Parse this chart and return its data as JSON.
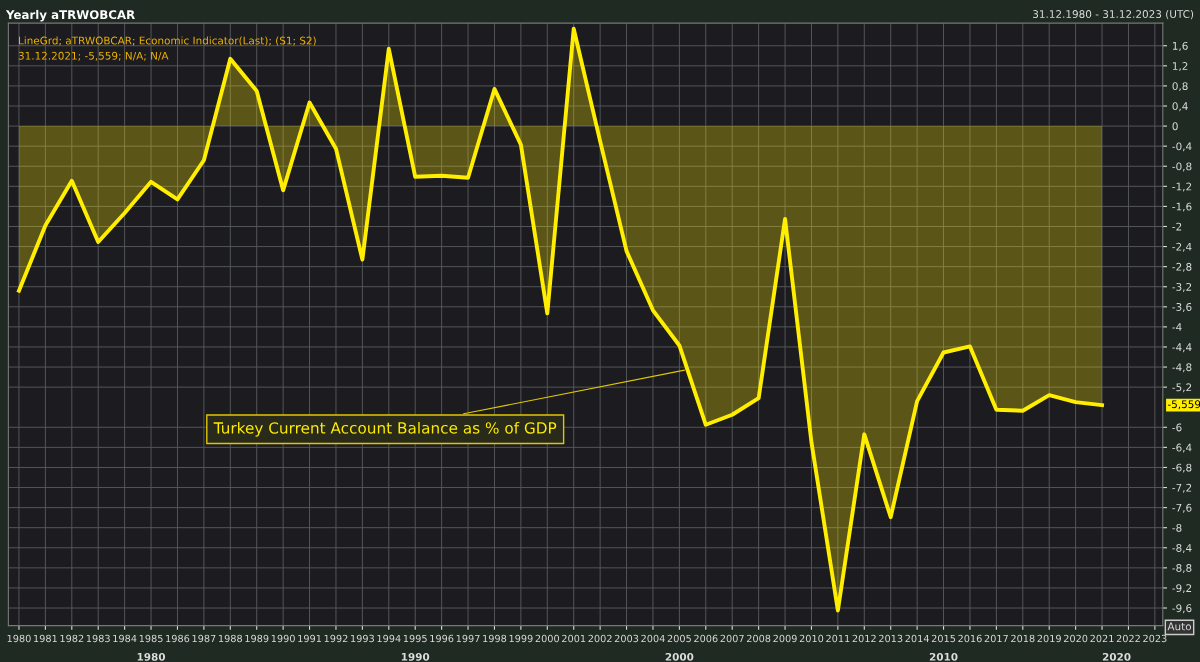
{
  "chart_data": {
    "type": "area",
    "title": "Yearly aTRWOBCAR",
    "x": [
      1980,
      1981,
      1982,
      1983,
      1984,
      1985,
      1986,
      1987,
      1988,
      1989,
      1990,
      1991,
      1992,
      1993,
      1994,
      1995,
      1996,
      1997,
      1998,
      1999,
      2000,
      2001,
      2002,
      2003,
      2004,
      2005,
      2006,
      2007,
      2008,
      2009,
      2010,
      2011,
      2012,
      2013,
      2014,
      2015,
      2016,
      2017,
      2018,
      2019,
      2020,
      2021
    ],
    "series": [
      {
        "color": "#ffee00",
        "values": [
          -3.28,
          -1.98,
          -1.09,
          -2.31,
          -1.73,
          -1.11,
          -1.46,
          -0.68,
          1.34,
          0.7,
          -1.28,
          0.47,
          -0.45,
          -2.66,
          1.54,
          -1.01,
          -0.99,
          -1.03,
          0.74,
          -0.37,
          -3.73,
          1.94,
          -0.3,
          -2.49,
          -3.67,
          -4.37,
          -5.95,
          -5.75,
          -5.42,
          -1.85,
          -6.3,
          -9.65,
          -6.14,
          -7.79,
          -5.48,
          -4.51,
          -4.39,
          -5.65,
          -5.67,
          -5.36,
          -5.5,
          -5.559
        ]
      }
    ],
    "xlim": [
      1979.6,
      2023.3
    ],
    "xticks": [
      1980,
      1981,
      1982,
      1983,
      1984,
      1985,
      1986,
      1987,
      1988,
      1989,
      1990,
      1991,
      1992,
      1993,
      1994,
      1995,
      1996,
      1997,
      1998,
      1999,
      2000,
      2001,
      2002,
      2003,
      2004,
      2005,
      2006,
      2007,
      2008,
      2009,
      2010,
      2011,
      2012,
      2013,
      2014,
      2015,
      2016,
      2017,
      2018,
      2019,
      2020,
      2021,
      2022,
      2023
    ],
    "ylim": [
      -9.95,
      2.05
    ],
    "yticks": [
      {
        "value": 1.6,
        "label": "1,6"
      },
      {
        "value": 1.2,
        "label": "1,2"
      },
      {
        "value": 0.8,
        "label": "0,8"
      },
      {
        "value": 0.4,
        "label": "0,4"
      },
      0,
      {
        "value": -0.4,
        "label": "-0,4"
      },
      {
        "value": -0.8,
        "label": "-0,8"
      },
      {
        "value": -1.2,
        "label": "-1,2"
      },
      {
        "value": -1.6,
        "label": "-1,6"
      },
      {
        "value": -2,
        "label": "-2"
      },
      {
        "value": -2.4,
        "label": "-2,4"
      },
      {
        "value": -2.8,
        "label": "-2,8"
      },
      {
        "value": -3.2,
        "label": "-3,2"
      },
      {
        "value": -3.6,
        "label": "-3,6"
      },
      {
        "value": -4,
        "label": "-4"
      },
      {
        "value": -4.4,
        "label": "-4,4"
      },
      {
        "value": -4.8,
        "label": "-4,8"
      },
      {
        "value": -5.2,
        "label": "-5,2"
      },
      {
        "value": -6,
        "label": "-6"
      },
      {
        "value": -6.4,
        "label": "-6,4"
      },
      {
        "value": -6.8,
        "label": "-6,8"
      },
      {
        "value": -7.2,
        "label": "-7,2"
      },
      {
        "value": -7.6,
        "label": "-7,6"
      },
      {
        "value": -8,
        "label": "-8"
      },
      {
        "value": -8.4,
        "label": "-8,4"
      },
      {
        "value": -8.8,
        "label": "-8,8"
      },
      {
        "value": -9.2,
        "label": "-9,2"
      },
      {
        "value": -9.6,
        "label": "-9,6"
      }
    ],
    "grid": true,
    "annotations": [
      "LineGrd; aTRWOBCAR; Economic Indicator(Last); (S1; S2)",
      "31.12.2021; -5,559; N/A; N/A",
      "31.12.1980 - 31.12.2023 (UTC)",
      "Auto",
      "-5,559",
      "1980",
      "1990",
      "2000",
      "2010",
      "2020",
      {
        "text": "Turkey Current Account Balance as % of GDP",
        "x": 2005.3,
        "y": -4.85
      }
    ]
  }
}
